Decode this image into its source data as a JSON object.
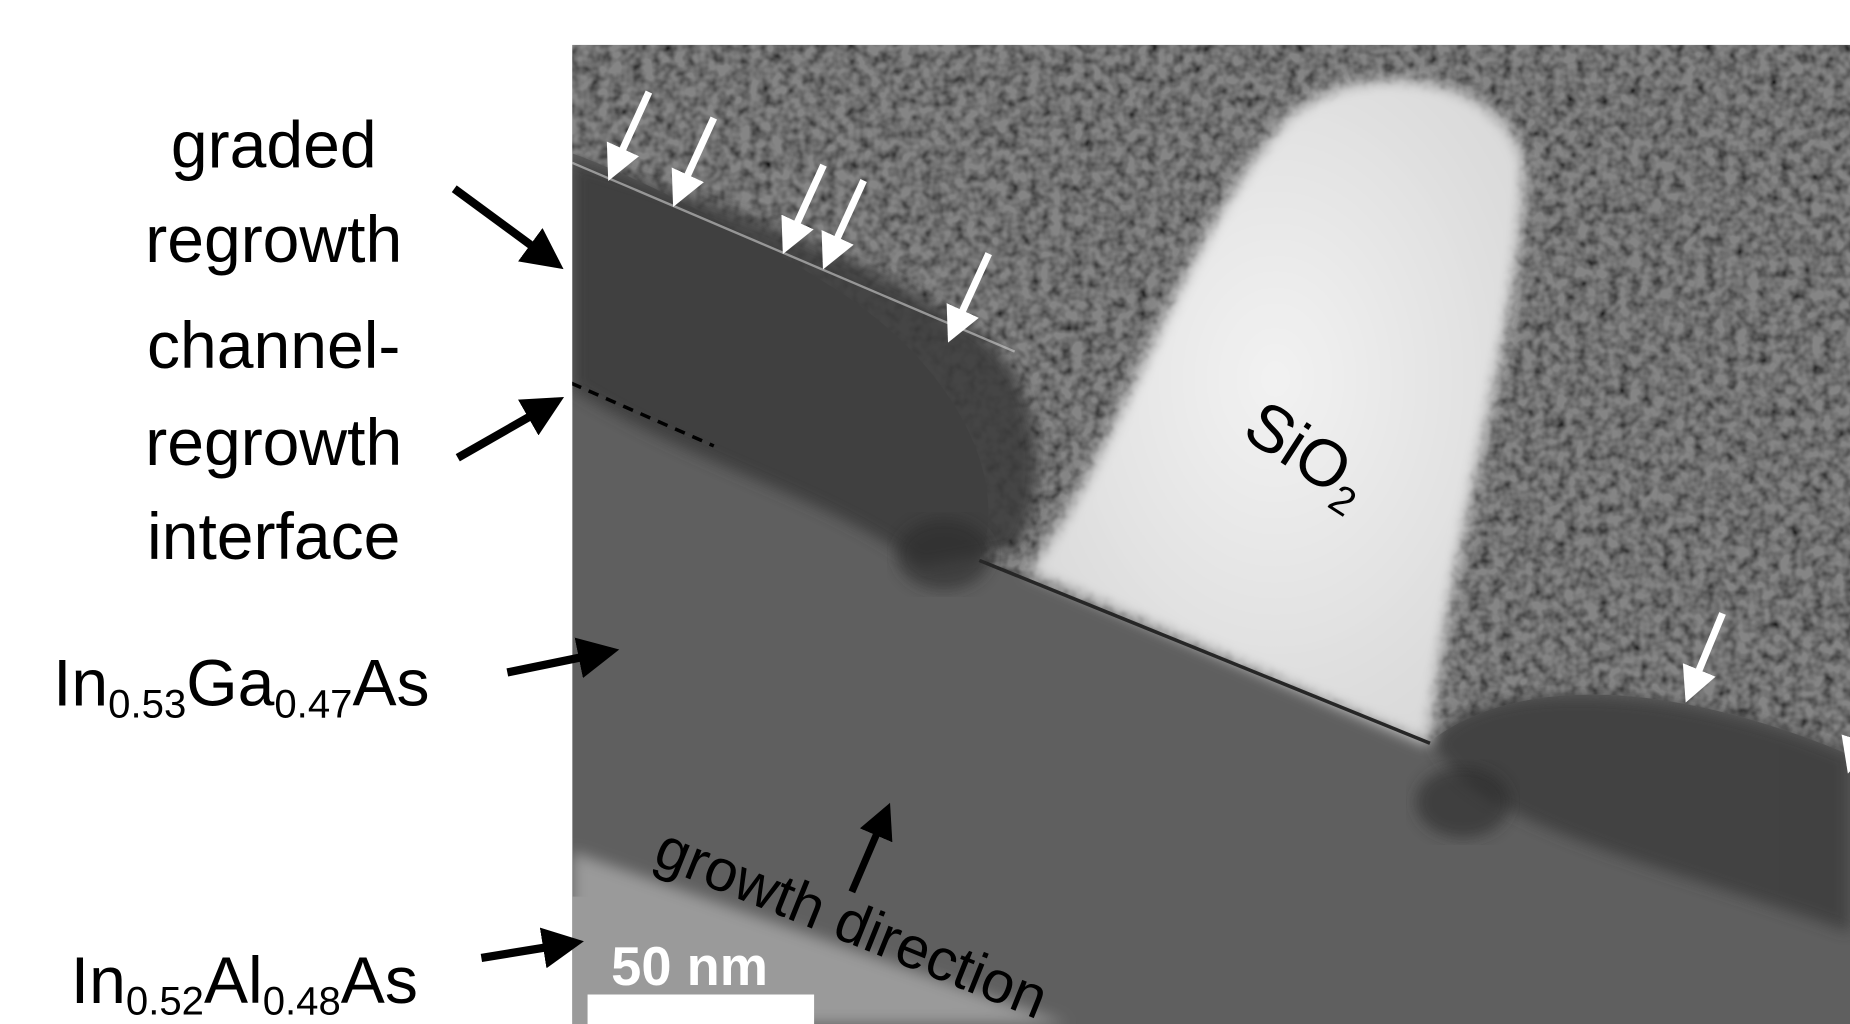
{
  "labels": {
    "graded_regrowth": [
      "graded",
      "regrowth"
    ],
    "interface": [
      "channel-",
      "regrowth",
      "interface"
    ],
    "ingaas": [
      "In",
      "0.53",
      "Ga",
      "0.47",
      "As"
    ],
    "inalas": [
      "In",
      "0.52",
      "Al",
      "0.48",
      "As"
    ],
    "sio2": [
      "SiO",
      "2"
    ],
    "growth_direction": "growth direction",
    "scale_bar": "50 nm"
  }
}
